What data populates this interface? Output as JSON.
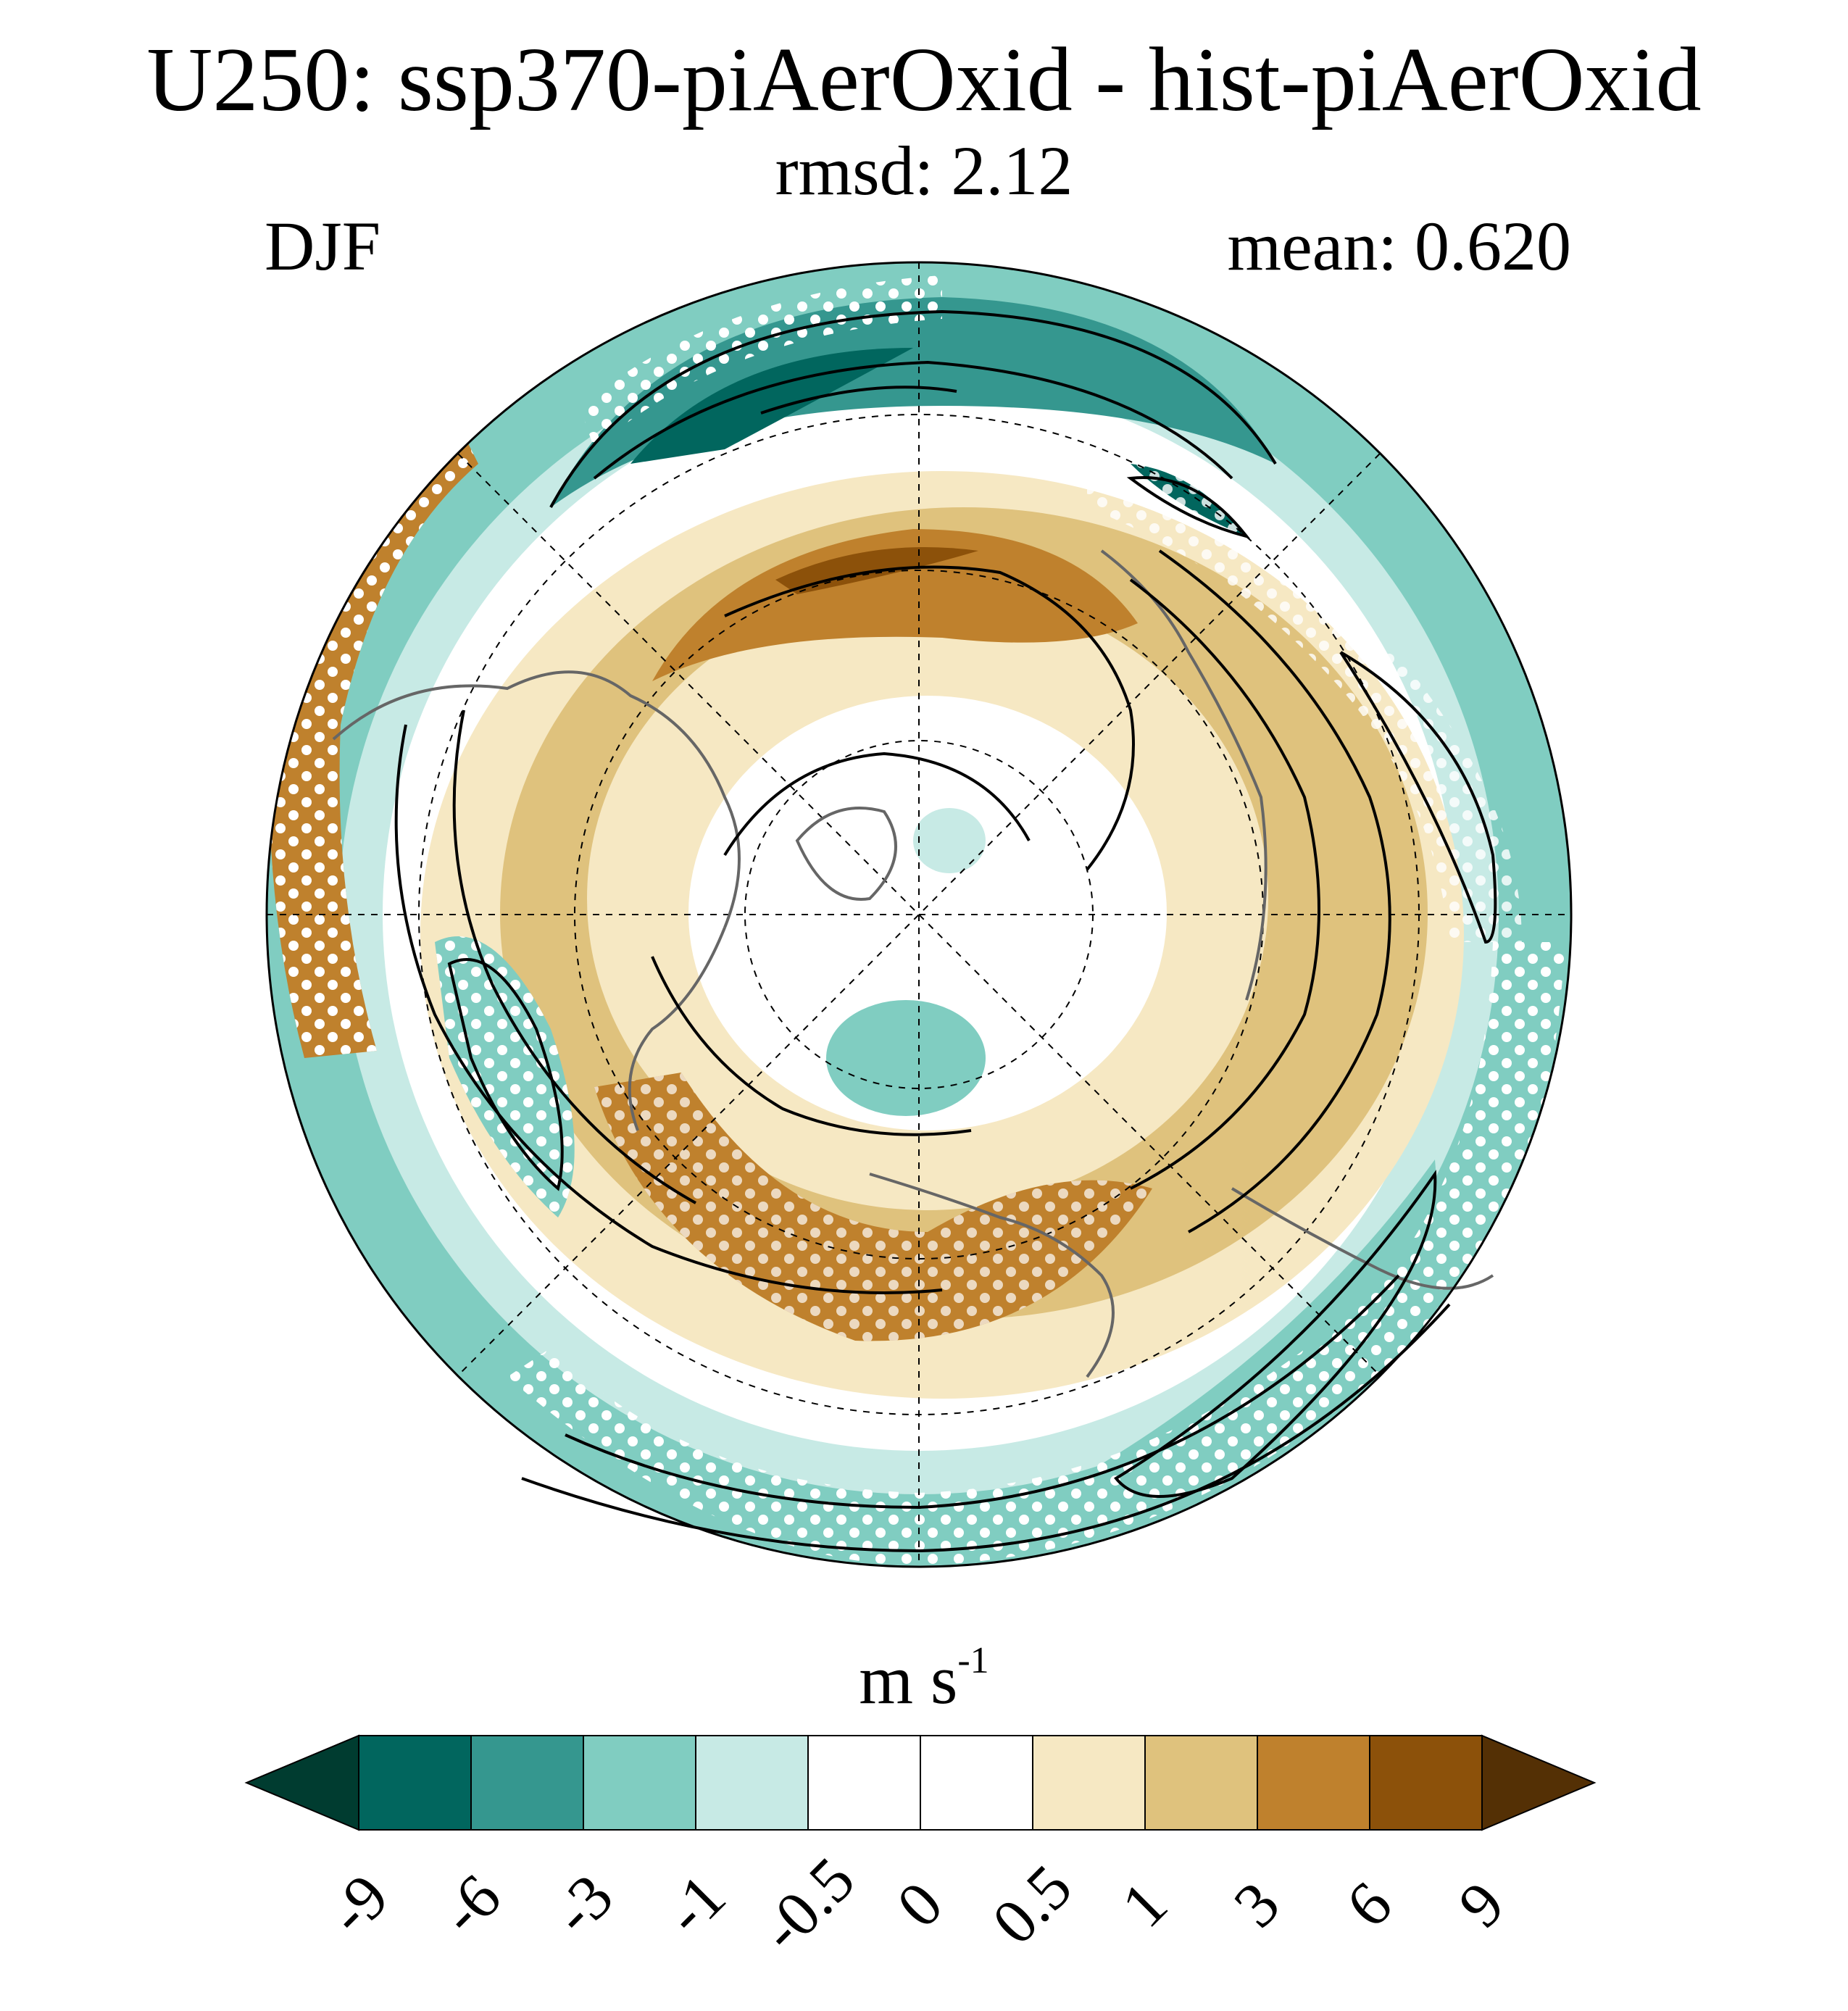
{
  "header": {
    "title": "U250: ssp370-piAerOxid - hist-piAerOxid",
    "subtitle": "rmsd: 2.12",
    "season": "DJF",
    "mean": "mean: 0.620"
  },
  "map": {
    "projection": "north-polar-stereographic",
    "variable": "U250",
    "stippling": "white dots",
    "contour_color": "#000000",
    "coastline_color": "#666666",
    "graticule_style": "dashed"
  },
  "colorbar": {
    "units_base": "m s",
    "units_exp": "-1",
    "levels": [
      "-9",
      "-6",
      "-3",
      "-1",
      "-0.5",
      "0",
      "0.5",
      "1",
      "3",
      "6",
      "9"
    ],
    "colors": [
      "#003c30",
      "#01665e",
      "#35978f",
      "#80cdc1",
      "#c7eae5",
      "#ffffff",
      "#ffffff",
      "#f6e8c3",
      "#dfc27d",
      "#bf812d",
      "#8c510a",
      "#543005"
    ]
  }
}
